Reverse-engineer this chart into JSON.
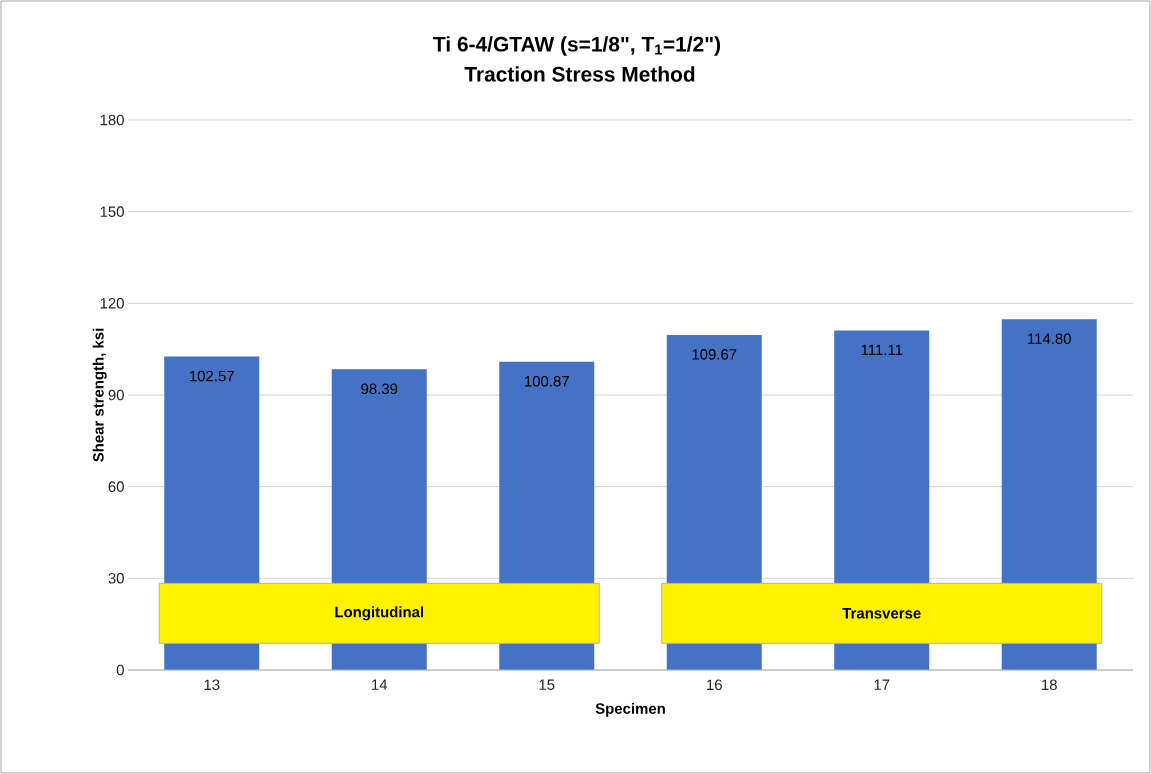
{
  "chart_data": {
    "type": "bar",
    "title": "Ti 6-4/GTAW (s=1/8\", T$_{1}$=1/2\")",
    "subtitle": "Traction Stress Method",
    "xlabel": "Specimen",
    "ylabel": "Shear strength, ksi",
    "categories": [
      "13",
      "14",
      "15",
      "16",
      "17",
      "18"
    ],
    "values": [
      102.57,
      98.39,
      100.87,
      109.67,
      111.11,
      114.8
    ],
    "value_labels": [
      "102.57",
      "98.39",
      "100.87",
      "109.67",
      "111.11",
      "114.80"
    ],
    "color": "#4472c4",
    "ylim": [
      0,
      180
    ],
    "yticks": [
      0,
      30,
      60,
      90,
      120,
      150,
      180
    ],
    "grid": "y",
    "annotations": [
      "Longitudinal",
      "Transverse"
    ]
  }
}
